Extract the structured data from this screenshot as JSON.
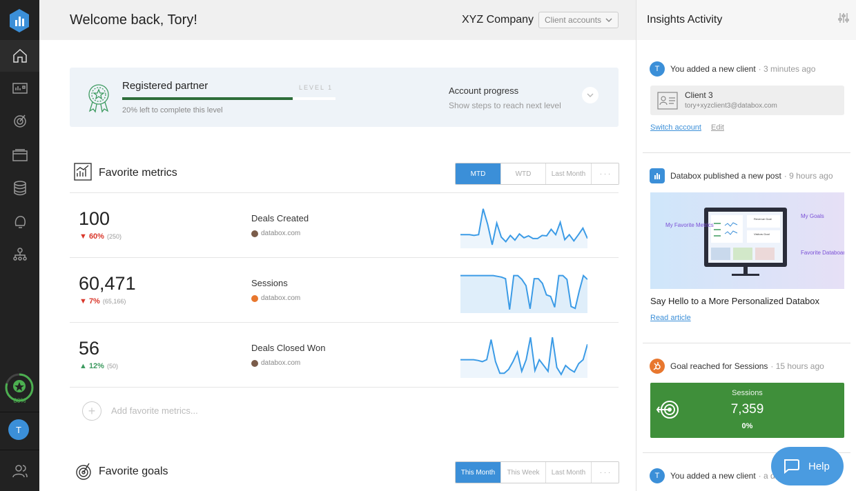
{
  "header": {
    "welcome": "Welcome back, Tory!",
    "company": "XYZ Company",
    "client_accounts": "Client accounts"
  },
  "partner": {
    "title": "Registered partner",
    "level": "LEVEL 1",
    "progress": 0.8,
    "subtitle": "20% left to complete this level",
    "account_title": "Account progress",
    "account_sub": "Show steps to reach next level"
  },
  "sidebar": {
    "progress_label": "80%",
    "avatar": "T",
    "items": [
      "home-icon",
      "databoards-icon",
      "goals-icon",
      "reports-icon",
      "data-manager-icon",
      "alerts-icon",
      "team-icon"
    ]
  },
  "favorite_metrics": {
    "title": "Favorite metrics",
    "ranges": [
      "MTD",
      "WTD",
      "Last Month",
      "· · ·"
    ],
    "active_range": 0,
    "metrics": [
      {
        "value": "100",
        "delta": "▼ 60%",
        "prev": "(250)",
        "direction": "down",
        "name": "Deals Created",
        "source": "databox.com",
        "source_color": "#7a5c4a",
        "spark": [
          0.72,
          0.72,
          0.72,
          0.74,
          0.72,
          0.05,
          0.45,
          0.98,
          0.42,
          0.78,
          0.9,
          0.74,
          0.86,
          0.7,
          0.8,
          0.75,
          0.82,
          0.82,
          0.74,
          0.75,
          0.58,
          0.72,
          0.4,
          0.85,
          0.72,
          0.88,
          0.72,
          0.55,
          0.82
        ]
      },
      {
        "value": "60,471",
        "delta": "▼ 7%",
        "prev": "(65,166)",
        "direction": "down",
        "name": "Sessions",
        "source": "databox.com",
        "source_color": "#e8772e",
        "spark": [
          0.1,
          0.1,
          0.1,
          0.1,
          0.1,
          0.1,
          0.1,
          0.1,
          0.1,
          0.12,
          0.14,
          0.18,
          0.98,
          0.1,
          0.1,
          0.2,
          0.36,
          0.96,
          0.18,
          0.18,
          0.3,
          0.6,
          0.64,
          0.92,
          0.1,
          0.1,
          0.2,
          0.9,
          0.95,
          0.5,
          0.1,
          0.2
        ]
      },
      {
        "value": "56",
        "delta": "▲ 12%",
        "prev": "(50)",
        "direction": "up",
        "name": "Deals Closed Won",
        "source": "databox.com",
        "source_color": "#7a5c4a",
        "spark": [
          0.6,
          0.6,
          0.6,
          0.6,
          0.62,
          0.65,
          0.6,
          0.08,
          0.65,
          0.95,
          0.95,
          0.85,
          0.65,
          0.4,
          0.9,
          0.6,
          0.02,
          0.88,
          0.6,
          0.75,
          0.9,
          0.02,
          0.8,
          0.98,
          0.75,
          0.85,
          0.92,
          0.7,
          0.6,
          0.2
        ]
      }
    ],
    "add_label": "Add favorite metrics..."
  },
  "favorite_goals": {
    "title": "Favorite goals",
    "ranges": [
      "This Month",
      "This Week",
      "Last Month",
      "· · ·"
    ],
    "active_range": 0
  },
  "insights": {
    "title": "Insights Activity",
    "activities": [
      {
        "avatar": "T",
        "text": "You added a new client",
        "time": "· 3 minutes ago"
      },
      {
        "avatar": "db",
        "text": "Databox published a new post",
        "time": "· 9 hours ago"
      },
      {
        "avatar": "hs",
        "text": "Goal reached for Sessions",
        "time": "· 15 hours ago"
      },
      {
        "avatar": "T",
        "text": "You added a new client",
        "time": "· a d"
      }
    ],
    "client": {
      "name": "Client 3",
      "email": "tory+xyzclient3@databox.com"
    },
    "switch_account": "Switch account",
    "edit": "Edit",
    "post_title": "Say Hello to a More Personalized Databox",
    "read_article": "Read article",
    "promo": {
      "my_favorite": "My Favorite Metrics",
      "my_goals": "My Goals",
      "favorite_databoards": "Favorite Databoards",
      "revenue_goal": "Revenue Goal",
      "visitors_goal": "Visitors Goal"
    },
    "goal": {
      "label": "Sessions",
      "value": "7,359",
      "pct": "0%"
    }
  },
  "help": "Help"
}
